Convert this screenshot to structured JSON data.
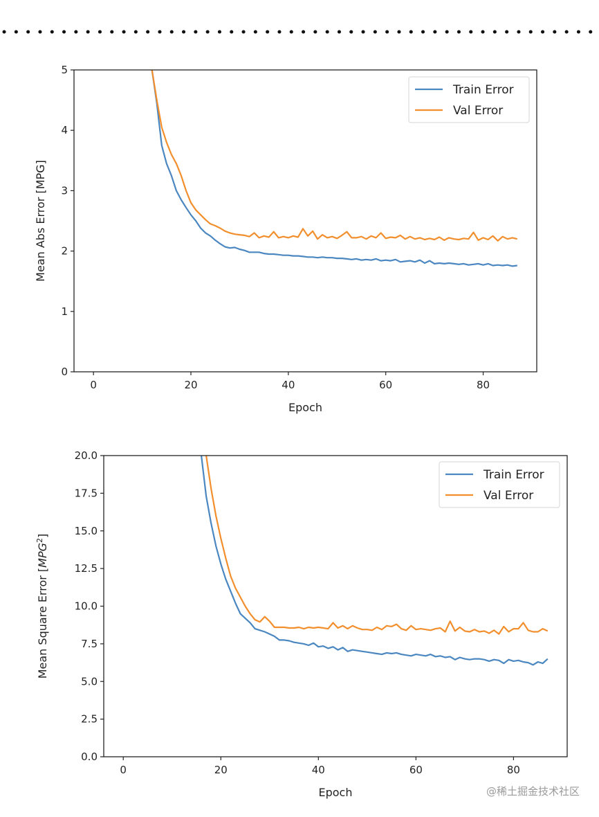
{
  "colors": {
    "train": "#4a86c0",
    "val": "#f28e2c",
    "axis": "#222222"
  },
  "watermark": "@稀土掘金技术社区",
  "chart_data": [
    {
      "type": "line",
      "title": "",
      "xlabel": "Epoch",
      "ylabel": "Mean Abs Error [MPG]",
      "xlim": [
        -4,
        91
      ],
      "ylim": [
        0,
        5
      ],
      "xticks": [
        0,
        20,
        40,
        60,
        80
      ],
      "yticks": [
        0,
        1,
        2,
        3,
        4,
        5
      ],
      "ytick_labels": [
        "0",
        "1",
        "2",
        "3",
        "4",
        "5"
      ],
      "legend": "top-right",
      "series": [
        {
          "name": "Train Error",
          "color": "train",
          "x": [
            12,
            13,
            14,
            15,
            16,
            17,
            18,
            19,
            20,
            21,
            22,
            23,
            24,
            25,
            26,
            27,
            28,
            29,
            30,
            31,
            32,
            33,
            34,
            35,
            36,
            37,
            38,
            39,
            40,
            41,
            42,
            43,
            44,
            45,
            46,
            47,
            48,
            49,
            50,
            51,
            52,
            53,
            54,
            55,
            56,
            57,
            58,
            59,
            60,
            61,
            62,
            63,
            64,
            65,
            66,
            67,
            68,
            69,
            70,
            71,
            72,
            73,
            74,
            75,
            76,
            77,
            78,
            79,
            80,
            81,
            82,
            83,
            84,
            85,
            86,
            87
          ],
          "y": [
            5.0,
            4.45,
            3.75,
            3.45,
            3.25,
            3.0,
            2.85,
            2.72,
            2.6,
            2.5,
            2.38,
            2.3,
            2.25,
            2.18,
            2.12,
            2.07,
            2.05,
            2.06,
            2.03,
            2.01,
            1.98,
            1.98,
            1.98,
            1.96,
            1.95,
            1.95,
            1.94,
            1.93,
            1.93,
            1.92,
            1.92,
            1.91,
            1.9,
            1.9,
            1.89,
            1.9,
            1.89,
            1.89,
            1.88,
            1.88,
            1.87,
            1.86,
            1.87,
            1.85,
            1.86,
            1.85,
            1.87,
            1.84,
            1.85,
            1.84,
            1.86,
            1.82,
            1.83,
            1.84,
            1.82,
            1.85,
            1.8,
            1.84,
            1.79,
            1.8,
            1.79,
            1.8,
            1.79,
            1.78,
            1.79,
            1.77,
            1.78,
            1.79,
            1.77,
            1.79,
            1.76,
            1.77,
            1.76,
            1.77,
            1.75,
            1.76
          ]
        },
        {
          "name": "Val Error",
          "color": "val",
          "x": [
            12,
            13,
            14,
            15,
            16,
            17,
            18,
            19,
            20,
            21,
            22,
            23,
            24,
            25,
            26,
            27,
            28,
            29,
            30,
            31,
            32,
            33,
            34,
            35,
            36,
            37,
            38,
            39,
            40,
            41,
            42,
            43,
            44,
            45,
            46,
            47,
            48,
            49,
            50,
            51,
            52,
            53,
            54,
            55,
            56,
            57,
            58,
            59,
            60,
            61,
            62,
            63,
            64,
            65,
            66,
            67,
            68,
            69,
            70,
            71,
            72,
            73,
            74,
            75,
            76,
            77,
            78,
            79,
            80,
            81,
            82,
            83,
            84,
            85,
            86,
            87
          ],
          "y": [
            5.0,
            4.5,
            4.05,
            3.8,
            3.6,
            3.45,
            3.25,
            3.0,
            2.8,
            2.68,
            2.6,
            2.52,
            2.45,
            2.42,
            2.38,
            2.33,
            2.3,
            2.28,
            2.27,
            2.26,
            2.24,
            2.3,
            2.22,
            2.25,
            2.23,
            2.32,
            2.22,
            2.24,
            2.22,
            2.25,
            2.23,
            2.37,
            2.25,
            2.33,
            2.2,
            2.27,
            2.22,
            2.24,
            2.21,
            2.26,
            2.32,
            2.22,
            2.22,
            2.24,
            2.2,
            2.25,
            2.22,
            2.3,
            2.21,
            2.23,
            2.22,
            2.26,
            2.2,
            2.24,
            2.2,
            2.22,
            2.19,
            2.21,
            2.19,
            2.23,
            2.18,
            2.22,
            2.2,
            2.19,
            2.21,
            2.2,
            2.31,
            2.18,
            2.22,
            2.19,
            2.25,
            2.17,
            2.24,
            2.2,
            2.22,
            2.2
          ]
        }
      ]
    },
    {
      "type": "line",
      "title": "",
      "xlabel": "Epoch",
      "ylabel": "Mean Square Error [$MPG^2$]",
      "xlim": [
        -4,
        91
      ],
      "ylim": [
        0,
        20
      ],
      "xticks": [
        0,
        20,
        40,
        60,
        80
      ],
      "yticks": [
        0,
        2.5,
        5,
        7.5,
        10,
        12.5,
        15,
        17.5,
        20
      ],
      "ytick_labels": [
        "0.0",
        "2.5",
        "5.0",
        "7.5",
        "10.0",
        "12.5",
        "15.0",
        "17.5",
        "20.0"
      ],
      "legend": "top-right",
      "series": [
        {
          "name": "Train Error",
          "color": "train",
          "x": [
            16,
            17,
            18,
            19,
            20,
            21,
            22,
            23,
            24,
            25,
            26,
            27,
            28,
            29,
            30,
            31,
            32,
            33,
            34,
            35,
            36,
            37,
            38,
            39,
            40,
            41,
            42,
            43,
            44,
            45,
            46,
            47,
            48,
            49,
            50,
            51,
            52,
            53,
            54,
            55,
            56,
            57,
            58,
            59,
            60,
            61,
            62,
            63,
            64,
            65,
            66,
            67,
            68,
            69,
            70,
            71,
            72,
            73,
            74,
            75,
            76,
            77,
            78,
            79,
            80,
            81,
            82,
            83,
            84,
            85,
            86,
            87
          ],
          "y": [
            20.0,
            17.3,
            15.5,
            14.0,
            12.8,
            11.8,
            11.0,
            10.2,
            9.5,
            9.2,
            8.9,
            8.5,
            8.4,
            8.3,
            8.15,
            8.0,
            7.75,
            7.75,
            7.7,
            7.6,
            7.55,
            7.5,
            7.4,
            7.55,
            7.3,
            7.35,
            7.2,
            7.3,
            7.1,
            7.25,
            7.0,
            7.1,
            7.05,
            7.0,
            6.95,
            6.9,
            6.85,
            6.8,
            6.9,
            6.85,
            6.9,
            6.8,
            6.75,
            6.7,
            6.8,
            6.75,
            6.7,
            6.8,
            6.65,
            6.7,
            6.6,
            6.65,
            6.45,
            6.6,
            6.5,
            6.45,
            6.5,
            6.5,
            6.45,
            6.35,
            6.45,
            6.4,
            6.2,
            6.45,
            6.35,
            6.4,
            6.3,
            6.25,
            6.1,
            6.3,
            6.2,
            6.5
          ]
        },
        {
          "name": "Val Error",
          "color": "val",
          "x": [
            17,
            18,
            19,
            20,
            21,
            22,
            23,
            24,
            25,
            26,
            27,
            28,
            29,
            30,
            31,
            32,
            33,
            34,
            35,
            36,
            37,
            38,
            39,
            40,
            41,
            42,
            43,
            44,
            45,
            46,
            47,
            48,
            49,
            50,
            51,
            52,
            53,
            54,
            55,
            56,
            57,
            58,
            59,
            60,
            61,
            62,
            63,
            64,
            65,
            66,
            67,
            68,
            69,
            70,
            71,
            72,
            73,
            74,
            75,
            76,
            77,
            78,
            79,
            80,
            81,
            82,
            83,
            84,
            85,
            86,
            87
          ],
          "y": [
            20.0,
            17.8,
            16.0,
            14.5,
            13.2,
            12.0,
            11.2,
            10.6,
            10.0,
            9.5,
            9.1,
            8.95,
            9.3,
            9.0,
            8.6,
            8.6,
            8.6,
            8.55,
            8.55,
            8.6,
            8.5,
            8.6,
            8.55,
            8.6,
            8.55,
            8.5,
            8.9,
            8.55,
            8.7,
            8.5,
            8.7,
            8.55,
            8.45,
            8.45,
            8.4,
            8.6,
            8.45,
            8.7,
            8.65,
            8.8,
            8.5,
            8.4,
            8.7,
            8.45,
            8.5,
            8.45,
            8.4,
            8.5,
            8.55,
            8.3,
            9.0,
            8.35,
            8.6,
            8.35,
            8.3,
            8.45,
            8.3,
            8.35,
            8.2,
            8.4,
            8.15,
            8.65,
            8.3,
            8.5,
            8.5,
            8.9,
            8.4,
            8.3,
            8.3,
            8.5,
            8.35
          ]
        }
      ]
    }
  ]
}
